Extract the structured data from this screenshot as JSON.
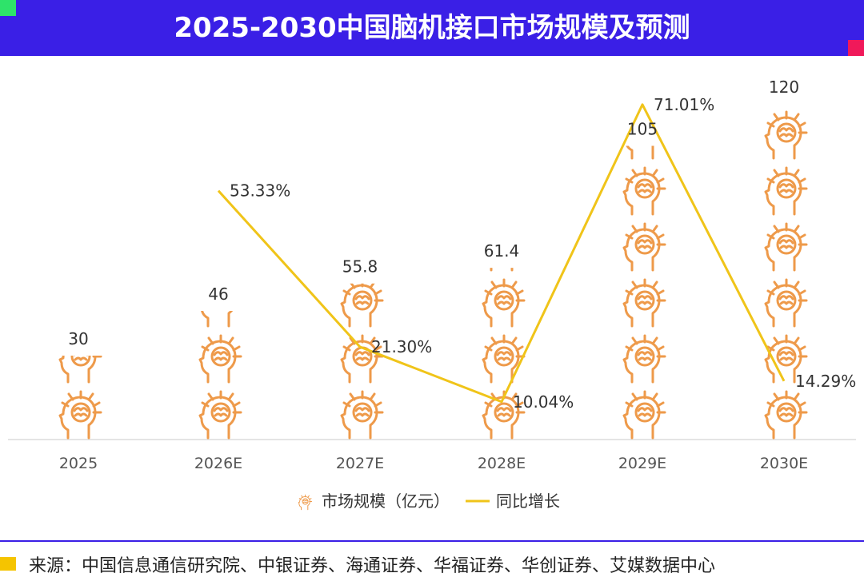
{
  "header": {
    "title": "2025-2030中国脑机接口市场规模及预测"
  },
  "chart_data": {
    "type": "bar",
    "categories": [
      "2025",
      "2026E",
      "2027E",
      "2028E",
      "2029E",
      "2030E"
    ],
    "series": [
      {
        "name": "市场规模（亿元）",
        "type": "pictograph-bar",
        "values": [
          30,
          46,
          55.8,
          61.4,
          105,
          120
        ],
        "labels": [
          "30",
          "46",
          "55.8",
          "61.4",
          "105",
          "120"
        ]
      },
      {
        "name": "同比增长",
        "type": "line",
        "values": [
          null,
          53.33,
          21.3,
          10.04,
          71.01,
          14.29
        ],
        "labels": [
          "",
          "53.33%",
          "21.30%",
          "10.04%",
          "71.01%",
          "14.29%"
        ]
      }
    ],
    "legend_position": "bottom",
    "grid": false,
    "colors": {
      "bar": "#ee9a4a",
      "line": "#f0c419"
    }
  },
  "footer": {
    "source": "来源：中国信息通信研究院、中银证券、海通证券、华福证券、华创证券、艾媒数据中心"
  },
  "colors": {
    "header_bg": "#3a1fe6",
    "accent_green": "#2ee36a",
    "accent_red": "#f0195a",
    "accent_yellow": "#f5c400"
  }
}
